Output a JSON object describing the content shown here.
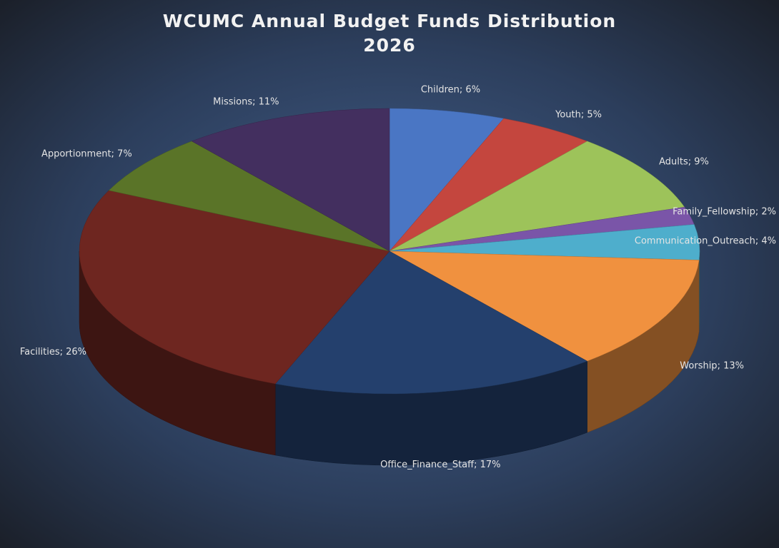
{
  "chart_data": {
    "type": "pie3d",
    "title": "WCUMC Annual Budget Funds Distribution",
    "subtitle": "2026",
    "values": [
      6,
      5,
      9,
      2,
      4,
      13,
      17,
      26,
      7,
      11
    ],
    "value_labels": [
      "Children; 6%",
      "Youth; 5%",
      "Adults; 9%",
      "Family_Fellowship; 2%",
      "Communication_Outreach; 4%",
      "Worship; 13%",
      "Office_Finance_Staff; 17%",
      "Facilities; 26%",
      "Apportionment; 7%",
      "Missions; 11%"
    ],
    "colors": [
      "#4a76c4",
      "#c4463e",
      "#9dc35a",
      "#7a55a8",
      "#4eaecc",
      "#f0913f",
      "#24406d",
      "#6e2620",
      "#5a7428",
      "#432f5f"
    ]
  }
}
